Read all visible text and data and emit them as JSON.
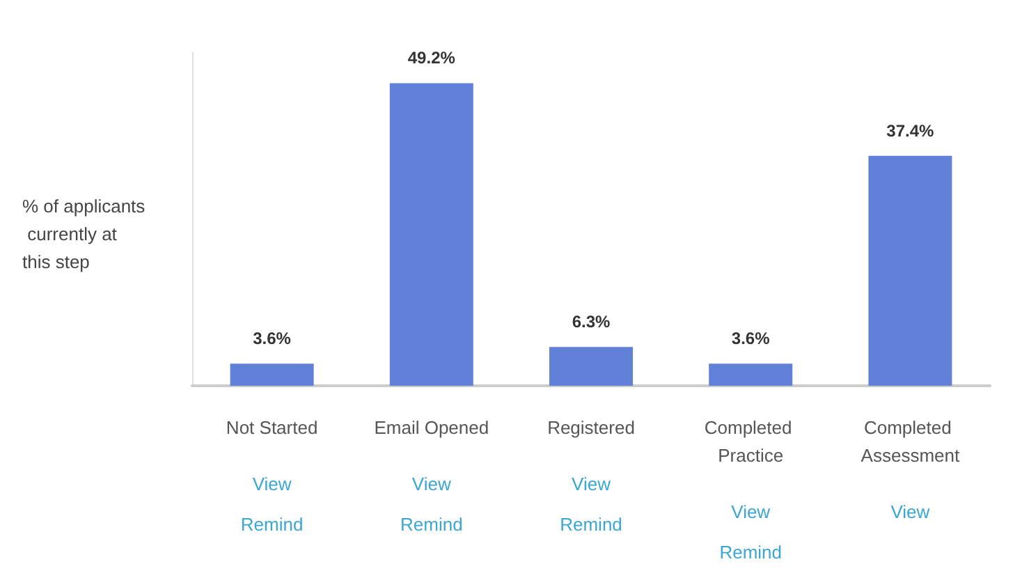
{
  "chart_data": {
    "type": "bar",
    "ylabel": "% of applicants currently at this step",
    "categories": [
      "Not Started",
      "Email Opened",
      "Registered",
      "Completed Practice",
      "Completed Assessment"
    ],
    "values": [
      3.6,
      49.2,
      6.3,
      3.6,
      37.4
    ],
    "value_labels": [
      "3.6%",
      "49.2%",
      "6.3%",
      "3.6%",
      "37.4%"
    ],
    "color": "#6181d9",
    "grid": false,
    "annotations": [
      "View",
      "Remind",
      "View",
      "Remind",
      "View",
      "Remind",
      "View",
      "Remind",
      "View"
    ]
  }
}
